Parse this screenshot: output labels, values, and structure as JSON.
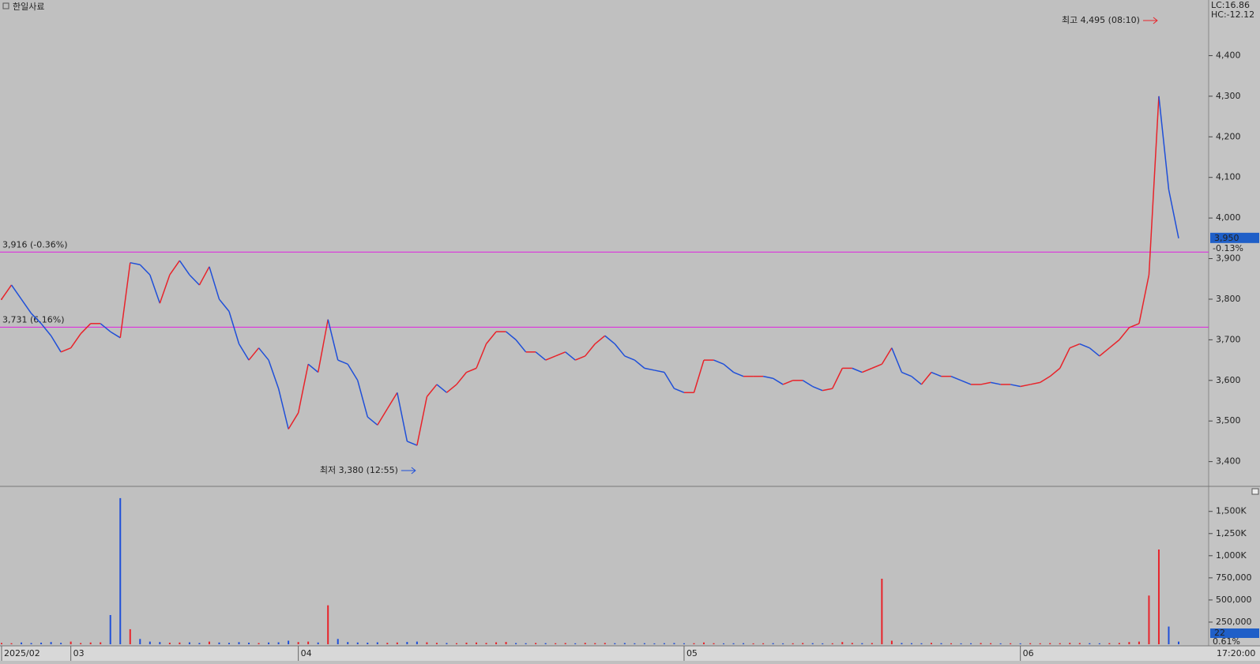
{
  "chart_data": [
    {
      "type": "line",
      "title": "한일사료",
      "indicators": [
        {
          "text": "LC:16.86",
          "color": "#e8232a"
        },
        {
          "text": "HC:-12.12",
          "color": "#1f4fd8"
        }
      ],
      "up_color": "#e8232a",
      "down_color": "#1f4fd8",
      "values": [
        3800,
        3835,
        3800,
        3765,
        3740,
        3710,
        3670,
        3680,
        3715,
        3740,
        3740,
        3720,
        3705,
        3890,
        3885,
        3860,
        3790,
        3860,
        3895,
        3860,
        3835,
        3880,
        3800,
        3770,
        3690,
        3650,
        3680,
        3650,
        3580,
        3480,
        3520,
        3640,
        3620,
        3750,
        3650,
        3640,
        3600,
        3510,
        3490,
        3530,
        3570,
        3450,
        3440,
        3560,
        3590,
        3570,
        3590,
        3620,
        3630,
        3690,
        3720,
        3720,
        3700,
        3670,
        3670,
        3650,
        3660,
        3670,
        3650,
        3660,
        3690,
        3710,
        3690,
        3660,
        3650,
        3630,
        3625,
        3620,
        3580,
        3570,
        3570,
        3650,
        3650,
        3640,
        3620,
        3610,
        3610,
        3610,
        3605,
        3590,
        3600,
        3600,
        3585,
        3575,
        3580,
        3630,
        3630,
        3620,
        3630,
        3640,
        3680,
        3620,
        3610,
        3590,
        3620,
        3610,
        3610,
        3600,
        3590,
        3590,
        3595,
        3590,
        3590,
        3585,
        3590,
        3595,
        3610,
        3630,
        3680,
        3690,
        3680,
        3660,
        3680,
        3700,
        3730,
        3740,
        3860,
        4300,
        4070,
        3950
      ],
      "ylim": [
        3339,
        4537
      ],
      "yticks": [
        {
          "value": 3400,
          "label": "3,400"
        },
        {
          "value": 3500,
          "label": "3,500"
        },
        {
          "value": 3600,
          "label": "3,600"
        },
        {
          "value": 3700,
          "label": "3,700"
        },
        {
          "value": 3800,
          "label": "3,800"
        },
        {
          "value": 3900,
          "label": "3,900"
        },
        {
          "value": 4000,
          "label": "4,000"
        },
        {
          "value": 4100,
          "label": "4,100"
        },
        {
          "value": 4200,
          "label": "4,200"
        },
        {
          "value": 4300,
          "label": "4,300"
        },
        {
          "value": 4400,
          "label": "4,400"
        }
      ],
      "hlines": [
        {
          "value": 3916,
          "label": "3,916 (-0.36%)"
        },
        {
          "value": 3731,
          "label": "3,731 (6.16%)"
        }
      ],
      "hline_color": "#e020e0",
      "high_label": "최고 4,495 (08:10)",
      "low_label": "최저 3,380 (12:55)",
      "last": {
        "value": 3950,
        "label": "3,950"
      },
      "last_change": "-0.13%"
    },
    {
      "type": "bar",
      "up_color": "#e8232a",
      "down_color": "#1f4fd8",
      "categories": [
        "2025/02",
        null,
        null,
        null,
        null,
        null,
        null,
        "03",
        null,
        null,
        null,
        null,
        null,
        null,
        null,
        null,
        null,
        null,
        null,
        null,
        null,
        null,
        null,
        null,
        null,
        null,
        null,
        null,
        null,
        null,
        "04",
        null,
        null,
        null,
        null,
        null,
        null,
        null,
        null,
        null,
        null,
        null,
        null,
        null,
        null,
        null,
        null,
        null,
        null,
        null,
        null,
        null,
        null,
        null,
        null,
        null,
        null,
        null,
        null,
        null,
        null,
        null,
        null,
        null,
        null,
        null,
        null,
        null,
        null,
        "05",
        null,
        null,
        null,
        null,
        null,
        null,
        null,
        null,
        null,
        null,
        null,
        null,
        null,
        null,
        null,
        null,
        null,
        null,
        null,
        null,
        null,
        null,
        null,
        null,
        null,
        null,
        null,
        null,
        null,
        null,
        null,
        null,
        null,
        "06",
        null,
        null,
        null,
        null,
        null,
        null,
        null,
        null,
        null,
        null,
        null,
        null,
        null,
        null,
        null,
        null
      ],
      "values": [
        15000,
        12000,
        20000,
        14000,
        18000,
        25000,
        16000,
        30000,
        14000,
        20000,
        22000,
        330000,
        1650000,
        170000,
        60000,
        30000,
        25000,
        18000,
        20000,
        22000,
        15000,
        30000,
        20000,
        16000,
        24000,
        18000,
        14000,
        20000,
        22000,
        40000,
        25000,
        30000,
        20000,
        440000,
        60000,
        25000,
        20000,
        18000,
        22000,
        16000,
        20000,
        26000,
        30000,
        22000,
        16000,
        14000,
        12000,
        18000,
        20000,
        15000,
        22000,
        26000,
        14000,
        12000,
        15000,
        13000,
        12000,
        14000,
        11000,
        16000,
        13000,
        15000,
        12000,
        14000,
        11000,
        12000,
        10000,
        12000,
        14000,
        11000,
        12000,
        20000,
        12000,
        10000,
        11000,
        12000,
        10000,
        11000,
        12000,
        10000,
        11000,
        14000,
        12000,
        10000,
        11000,
        25000,
        15000,
        12000,
        14000,
        740000,
        40000,
        14000,
        12000,
        11000,
        16000,
        12000,
        11000,
        10000,
        11000,
        14000,
        12000,
        10000,
        11000,
        10000,
        12000,
        11000,
        13000,
        12000,
        16000,
        14000,
        12000,
        11000,
        13000,
        15000,
        25000,
        30000,
        550000,
        1070000,
        200000,
        30000
      ],
      "ylim": [
        0,
        1774000
      ],
      "yticks": [
        {
          "value": 250000,
          "label": "250,000"
        },
        {
          "value": 500000,
          "label": "500,000"
        },
        {
          "value": 750000,
          "label": "750,000"
        },
        {
          "value": 1000000,
          "label": "1,000K"
        },
        {
          "value": 1250000,
          "label": "1,250K"
        },
        {
          "value": 1500000,
          "label": "1,500K"
        }
      ],
      "last": {
        "value": 22,
        "label": "22"
      },
      "last_change": "0.61%",
      "time_label": "17:20:00"
    }
  ]
}
